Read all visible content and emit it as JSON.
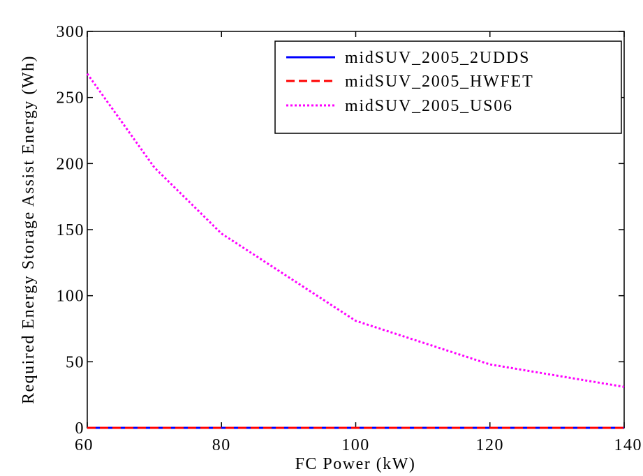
{
  "chart_data": {
    "type": "line",
    "title": "",
    "xlabel": "FC Power (kW)",
    "ylabel": "Required Energy Storage Assist Energy (Wh)",
    "xlim": [
      60,
      140
    ],
    "ylim": [
      0,
      300
    ],
    "xticks": [
      60,
      80,
      100,
      120,
      140
    ],
    "yticks": [
      0,
      50,
      100,
      150,
      200,
      250,
      300
    ],
    "grid": false,
    "legend_position": "top-right",
    "x": [
      60,
      70,
      80,
      100,
      120,
      140
    ],
    "series": [
      {
        "name": "midSUV_2005_2UDDS",
        "values": [
          0,
          0,
          0,
          0,
          0,
          0
        ],
        "color": "#0000ff",
        "style": "solid"
      },
      {
        "name": "midSUV_2005_HWFET",
        "values": [
          0,
          0,
          0,
          0,
          0,
          0
        ],
        "color": "#ff0000",
        "style": "dashed"
      },
      {
        "name": "midSUV_2005_US06",
        "values": [
          268,
          197,
          147,
          81,
          48,
          31
        ],
        "color": "#ff00ff",
        "style": "dotted"
      }
    ]
  }
}
